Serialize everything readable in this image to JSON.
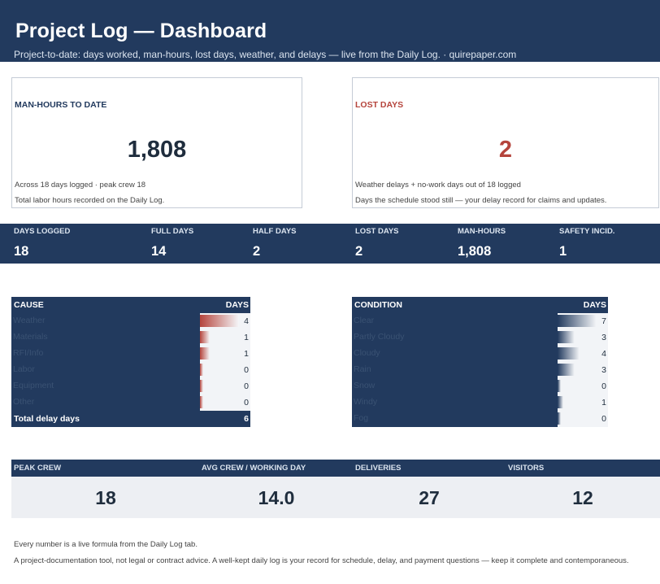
{
  "header": {
    "title": "Project Log — Dashboard",
    "subtitle": "Project-to-date: days worked, man-hours, lost days, weather, and delays — live from the Daily Log.  ·  quirepaper.com"
  },
  "cards": {
    "manhours": {
      "title": "MAN-HOURS TO DATE",
      "value": "1,808",
      "note1": "Across 18 days logged  ·  peak crew 18",
      "note2": "Total labor hours recorded on the Daily Log."
    },
    "lostdays": {
      "title": "LOST DAYS",
      "value": "2",
      "note1": "Weather delays + no-work days out of 18 logged",
      "note2": "Days the schedule stood still — your delay record for claims and updates."
    }
  },
  "stats": [
    {
      "label": "DAYS LOGGED",
      "value": "18"
    },
    {
      "label": "FULL DAYS",
      "value": "14"
    },
    {
      "label": "HALF DAYS",
      "value": "2"
    },
    {
      "label": "LOST DAYS",
      "value": "2"
    },
    {
      "label": "MAN-HOURS",
      "value": "1,808"
    },
    {
      "label": "SAFETY INCID.",
      "value": "1"
    }
  ],
  "cause_table": {
    "col1": "CAUSE",
    "col2": "DAYS",
    "rows": [
      {
        "label": "Weather",
        "days": 4
      },
      {
        "label": "Materials",
        "days": 1
      },
      {
        "label": "RFI/Info",
        "days": 1
      },
      {
        "label": "Labor",
        "days": 0
      },
      {
        "label": "Equipment",
        "days": 0
      },
      {
        "label": "Other",
        "days": 0
      }
    ],
    "total_label": "Total delay days",
    "total_value": "6",
    "bar_color": "#b5443c"
  },
  "condition_table": {
    "col1": "CONDITION",
    "col2": "DAYS",
    "rows": [
      {
        "label": "Clear",
        "days": 7
      },
      {
        "label": "Partly Cloudy",
        "days": 3
      },
      {
        "label": "Cloudy",
        "days": 4
      },
      {
        "label": "Rain",
        "days": 3
      },
      {
        "label": "Snow",
        "days": 0
      },
      {
        "label": "Windy",
        "days": 1
      },
      {
        "label": "Fog",
        "days": 0
      }
    ],
    "bar_color": "#223a5e"
  },
  "crew": [
    {
      "label": "PEAK CREW",
      "value": "18"
    },
    {
      "label": "AVG CREW / WORKING DAY",
      "value": "14.0"
    },
    {
      "label": "DELIVERIES",
      "value": "27"
    },
    {
      "label": "VISITORS",
      "value": "12"
    }
  ],
  "footer": {
    "line1": "Every number is a live formula from the Daily Log tab.",
    "line2": "A project-documentation tool, not legal or contract advice. A well-kept daily log is your record for schedule, delay, and payment questions — keep it complete and contemporaneous."
  },
  "colors": {
    "navy": "#223a5e",
    "red": "#b5443c",
    "panel": "#edeff3"
  }
}
